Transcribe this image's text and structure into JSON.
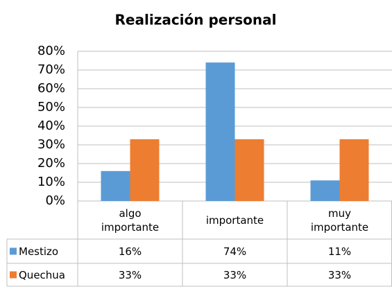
{
  "chart_data": {
    "type": "bar",
    "title": "Realización personal",
    "categories": [
      "algo importante",
      "importante",
      "muy importante"
    ],
    "series": [
      {
        "name": "Mestizo",
        "color": "#5b9bd5",
        "values": [
          16,
          74,
          11
        ],
        "value_labels": [
          "16%",
          "74%",
          "11%"
        ]
      },
      {
        "name": "Quechua",
        "color": "#ed7d31",
        "values": [
          33,
          33,
          33
        ],
        "value_labels": [
          "33%",
          "33%",
          "33%"
        ]
      }
    ],
    "ylim": [
      0,
      80
    ],
    "yticks": [
      {
        "value": 0,
        "label": "0%"
      },
      {
        "value": 10,
        "label": "10%"
      },
      {
        "value": 20,
        "label": "20%"
      },
      {
        "value": 30,
        "label": "30%"
      },
      {
        "value": 40,
        "label": "40%"
      },
      {
        "value": 50,
        "label": "50%"
      },
      {
        "value": 60,
        "label": "60%"
      },
      {
        "value": 70,
        "label": "70%"
      },
      {
        "value": 80,
        "label": "80%"
      }
    ],
    "grid": true,
    "legend": "table"
  }
}
